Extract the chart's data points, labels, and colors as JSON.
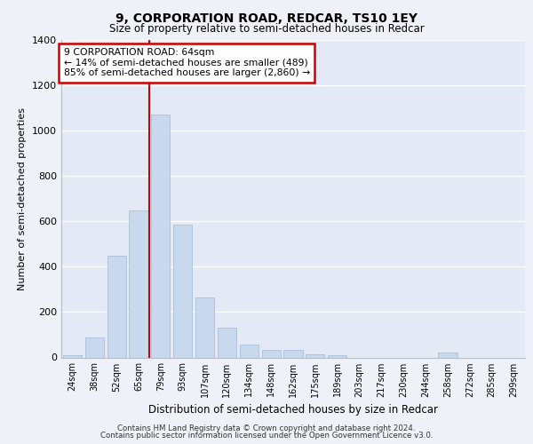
{
  "title": "9, CORPORATION ROAD, REDCAR, TS10 1EY",
  "subtitle": "Size of property relative to semi-detached houses in Redcar",
  "xlabel": "Distribution of semi-detached houses by size in Redcar",
  "ylabel": "Number of semi-detached properties",
  "categories": [
    "24sqm",
    "38sqm",
    "52sqm",
    "65sqm",
    "79sqm",
    "93sqm",
    "107sqm",
    "120sqm",
    "134sqm",
    "148sqm",
    "162sqm",
    "175sqm",
    "189sqm",
    "203sqm",
    "217sqm",
    "230sqm",
    "244sqm",
    "258sqm",
    "272sqm",
    "285sqm",
    "299sqm"
  ],
  "values": [
    10,
    90,
    450,
    650,
    1070,
    585,
    265,
    130,
    55,
    35,
    35,
    15,
    10,
    0,
    0,
    0,
    0,
    20,
    0,
    0,
    0
  ],
  "bar_color": "#c9d9ed",
  "bar_edgecolor": "#a0b8d8",
  "vline_x": 3.5,
  "vline_color": "#cc0000",
  "annotation_title": "9 CORPORATION ROAD: 64sqm",
  "annotation_line1": "← 14% of semi-detached houses are smaller (489)",
  "annotation_line2": "85% of semi-detached houses are larger (2,860) →",
  "annotation_box_color": "#cc0000",
  "ylim": [
    0,
    1400
  ],
  "yticks": [
    0,
    200,
    400,
    600,
    800,
    1000,
    1200,
    1400
  ],
  "footer_line1": "Contains HM Land Registry data © Crown copyright and database right 2024.",
  "footer_line2": "Contains public sector information licensed under the Open Government Licence v3.0.",
  "background_color": "#eef2f8",
  "plot_bg_color": "#e4eaf5"
}
